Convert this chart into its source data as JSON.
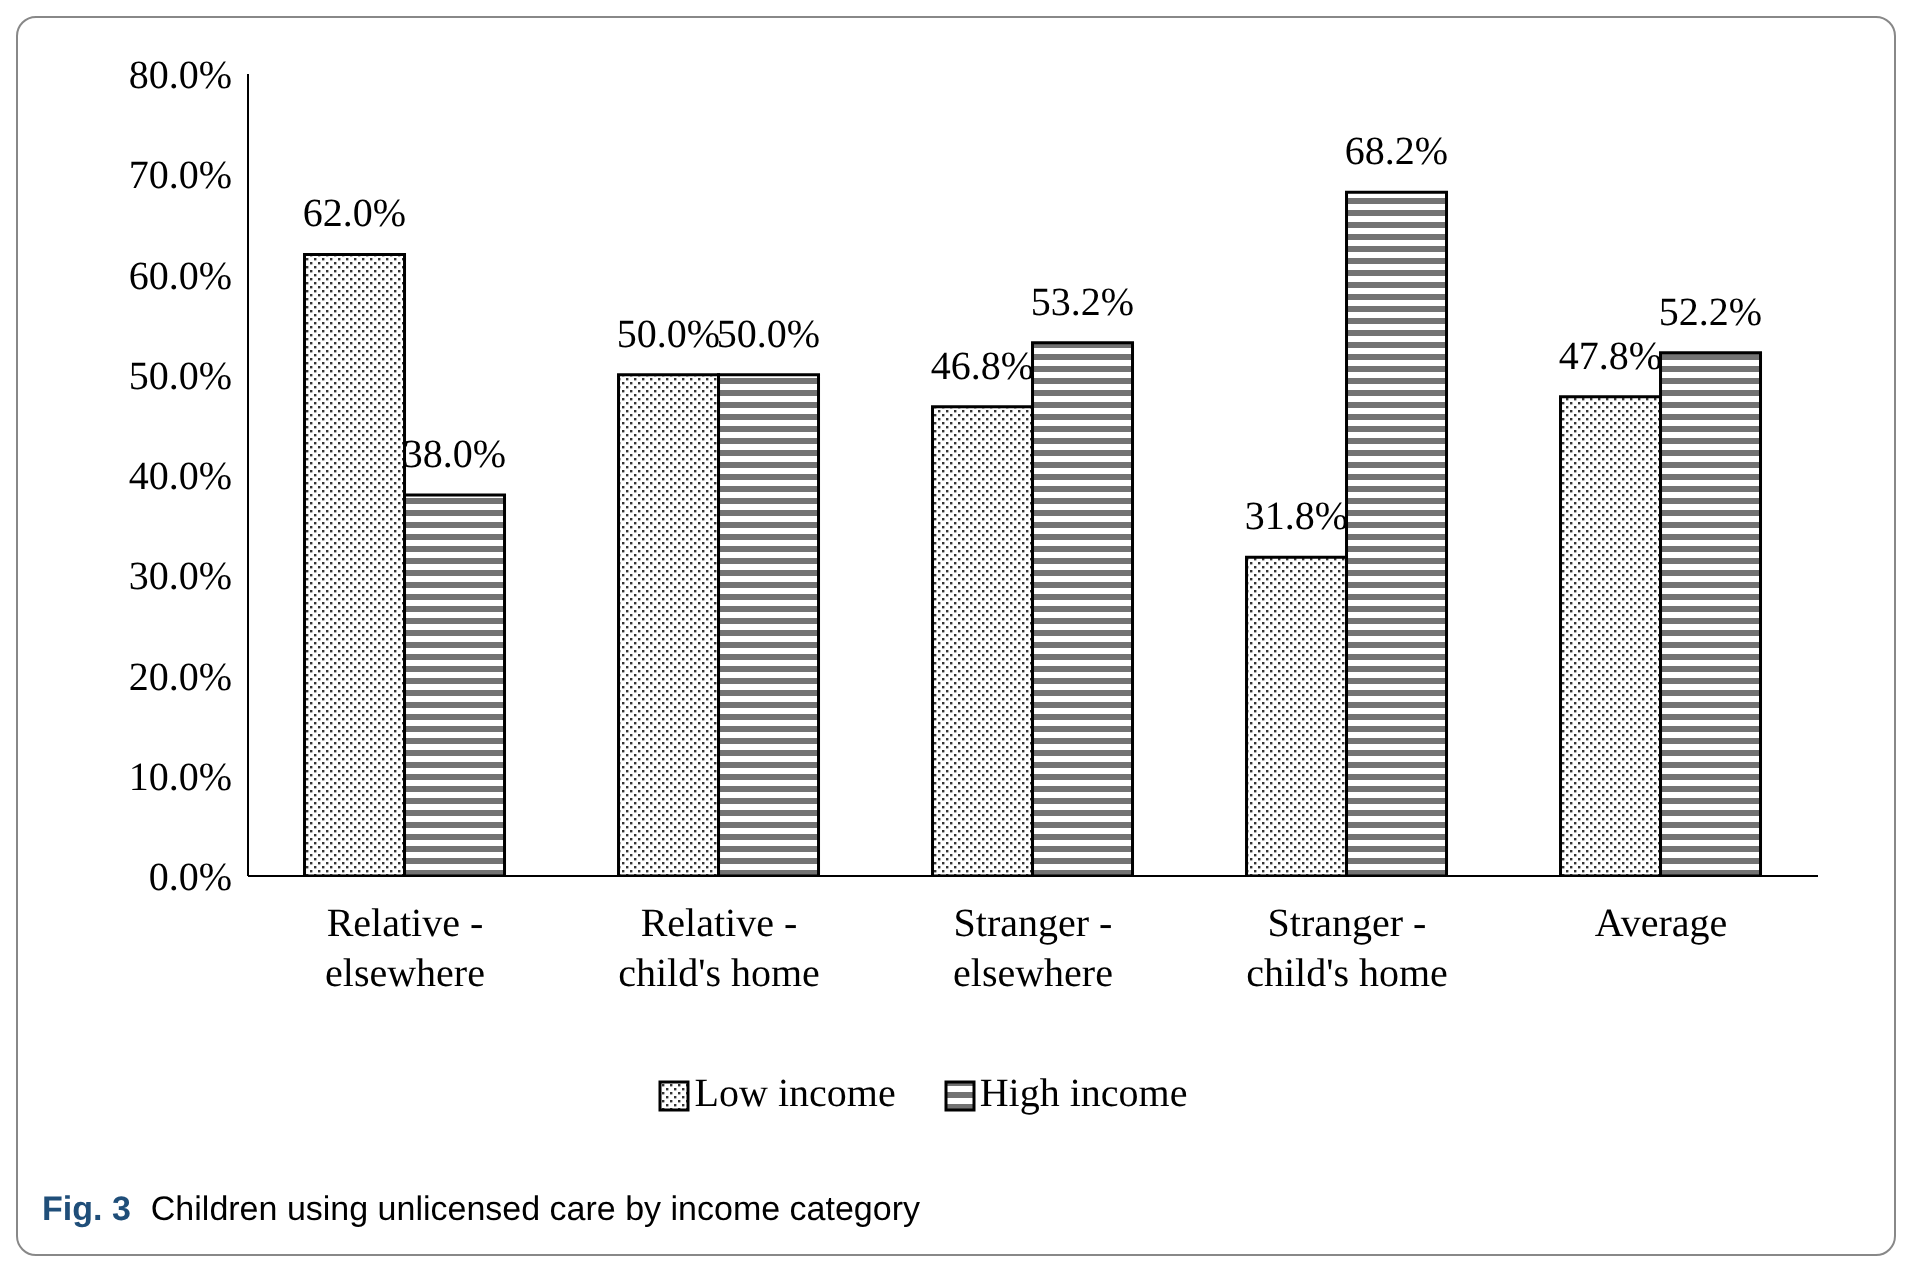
{
  "chart_data": {
    "type": "bar",
    "categories": [
      "Relative - elsewhere",
      "Relative - child's home",
      "Stranger - elsewhere",
      "Stranger - child's home",
      "Average"
    ],
    "series": [
      {
        "name": "Low income",
        "color": "#000000",
        "values": [
          62.0,
          50.0,
          46.8,
          31.8,
          47.8
        ],
        "value_labels": [
          "62.0%",
          "50.0%",
          "46.8%",
          "31.8%",
          "47.8%"
        ]
      },
      {
        "name": "High income",
        "color": "#000000",
        "values": [
          38.0,
          50.0,
          53.2,
          68.2,
          52.2
        ],
        "value_labels": [
          "38.0%",
          "50.0%",
          "53.2%",
          "68.2%",
          "52.2%"
        ]
      }
    ],
    "ylim": [
      0,
      80
    ],
    "yticks": [
      {
        "value": 0,
        "label": "0.0%"
      },
      {
        "value": 10,
        "label": "10.0%"
      },
      {
        "value": 20,
        "label": "20.0%"
      },
      {
        "value": 30,
        "label": "30.0%"
      },
      {
        "value": 40,
        "label": "40.0%"
      },
      {
        "value": 50,
        "label": "50.0%"
      },
      {
        "value": 60,
        "label": "60.0%"
      },
      {
        "value": 70,
        "label": "70.0%"
      },
      {
        "value": 80,
        "label": "80.0%"
      }
    ],
    "grid": false,
    "legend": "bottom",
    "annotations": [
      "Fig. 3",
      "Children using unlicensed care by income category"
    ]
  }
}
